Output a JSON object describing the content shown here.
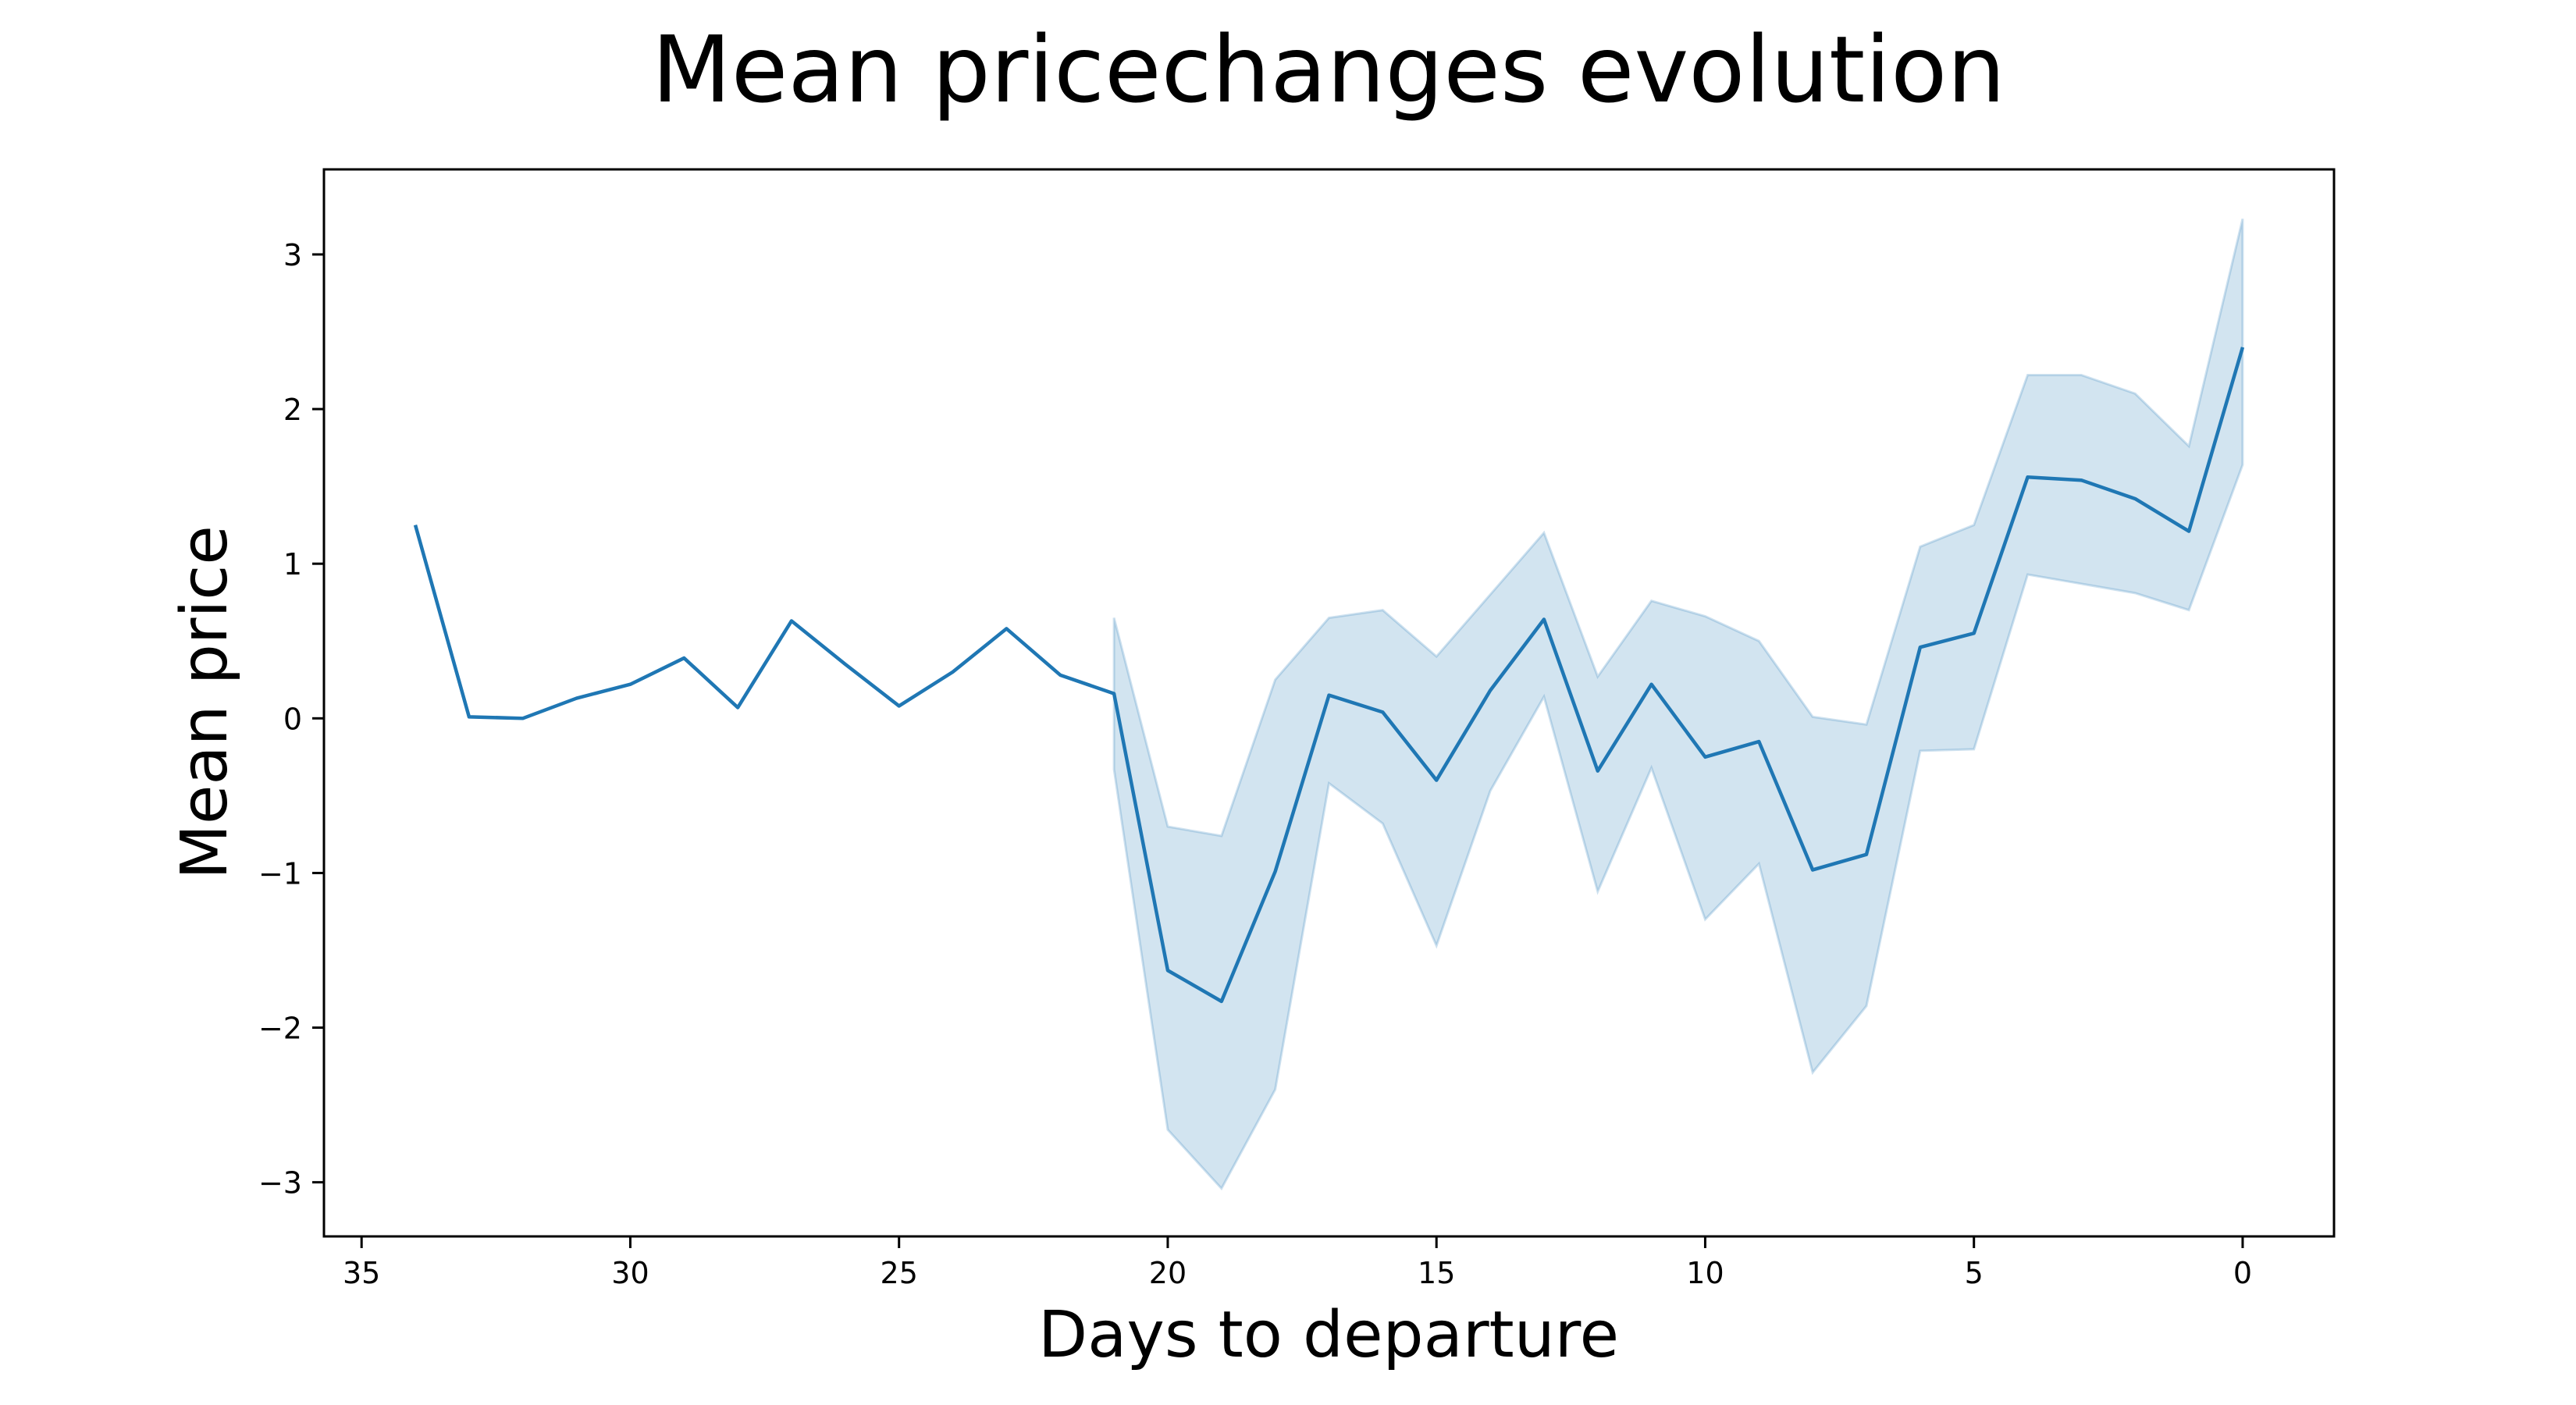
{
  "chart_data": {
    "type": "line",
    "title": "Mean pricechanges evolution",
    "xlabel": "Days to departure",
    "ylabel": "Mean price",
    "x_inverted": true,
    "xlim": [
      35.7,
      -1.7
    ],
    "ylim": [
      -3.35,
      3.55
    ],
    "xticks": [
      35,
      30,
      25,
      20,
      15,
      10,
      5,
      0
    ],
    "yticks": [
      3,
      2,
      1,
      0,
      -1,
      -2,
      -3
    ],
    "grid": false,
    "colors": {
      "line": "#1f77b4",
      "band": "#1f77b4"
    },
    "series": [
      {
        "x": [
          34,
          33,
          32,
          31,
          30,
          29,
          28,
          27,
          26,
          25,
          24,
          23,
          22,
          21,
          20,
          19,
          18,
          17,
          16,
          15,
          14,
          13,
          12,
          11,
          10,
          9,
          8,
          7,
          6,
          5,
          4,
          3,
          2,
          1,
          0
        ],
        "values": [
          1.25,
          0.01,
          0.0,
          0.13,
          0.22,
          0.39,
          0.07,
          0.63,
          0.35,
          0.08,
          0.3,
          0.58,
          0.28,
          0.16,
          -1.63,
          -1.83,
          -0.99,
          0.15,
          0.04,
          -0.4,
          0.18,
          0.64,
          -0.34,
          0.22,
          -0.25,
          -0.15,
          -0.98,
          -0.88,
          0.46,
          0.55,
          1.56,
          1.54,
          1.42,
          1.21,
          2.4
        ],
        "band_x": [
          21,
          20,
          19,
          18,
          17,
          16,
          15,
          14,
          13,
          12,
          11,
          10,
          9,
          8,
          7,
          6,
          5,
          4,
          3,
          2,
          1,
          0
        ],
        "band_upper": [
          0.65,
          -0.7,
          -0.76,
          0.25,
          0.65,
          0.7,
          0.4,
          0.8,
          1.2,
          0.27,
          0.76,
          0.66,
          0.5,
          0.01,
          -0.04,
          1.11,
          1.25,
          2.22,
          2.22,
          2.1,
          1.76,
          3.23
        ],
        "band_lower": [
          -0.33,
          -2.66,
          -3.04,
          -2.4,
          -0.42,
          -0.68,
          -1.47,
          -0.47,
          0.14,
          -1.12,
          -0.32,
          -1.3,
          -0.94,
          -2.29,
          -1.86,
          -0.21,
          -0.2,
          0.93,
          0.87,
          0.81,
          0.7,
          1.64
        ]
      }
    ]
  }
}
